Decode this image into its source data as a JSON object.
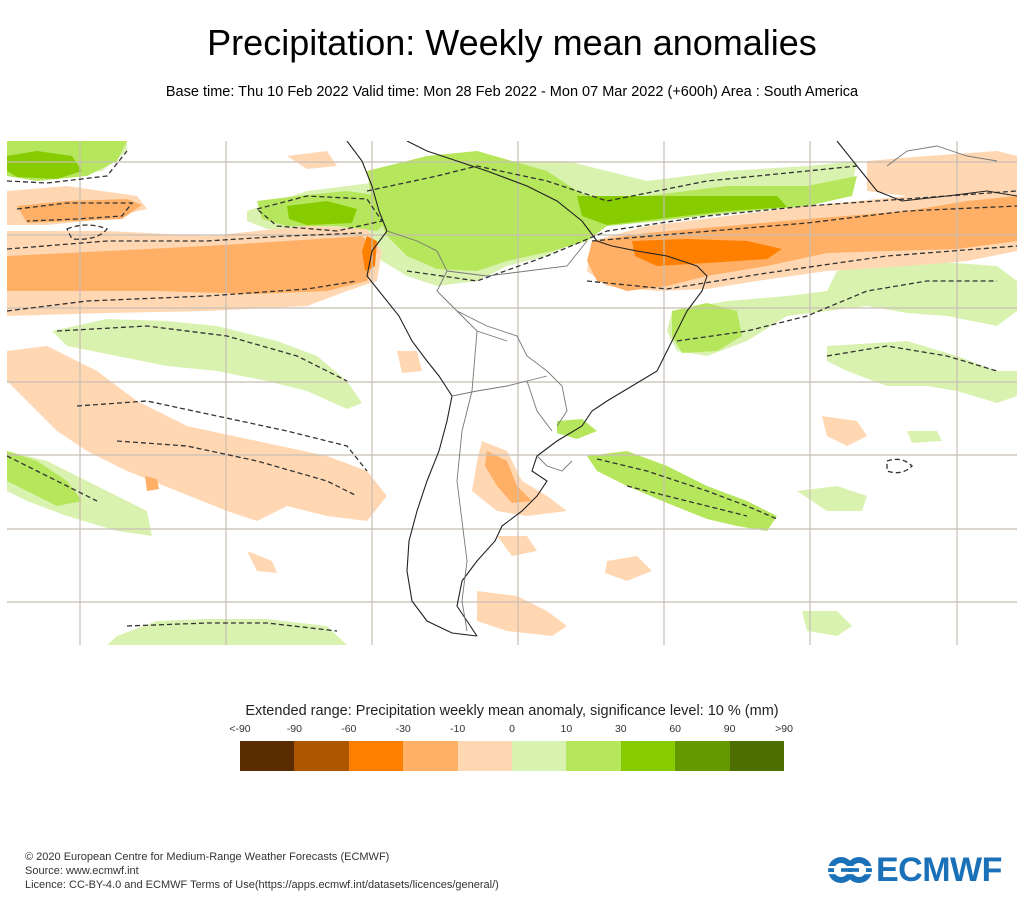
{
  "header": {
    "title": "Precipitation: Weekly mean anomalies",
    "subtitle": "Base time: Thu 10 Feb 2022 Valid time: Mon 28 Feb 2022 - Mon 07 Mar 2022 (+600h) Area : South America"
  },
  "map": {
    "area": "South America",
    "background_color": "#ffffff",
    "grid_color": "#c8beb4",
    "coastline_color": "#222222",
    "border_color": "#666666",
    "significance_contour": "dashed",
    "anomaly_regions": [
      {
        "name": "tropical-north-pacific-wet",
        "category": "10-30"
      },
      {
        "name": "equatorial-pacific-dry-band",
        "category": "-30--10"
      },
      {
        "name": "amazon-wet",
        "category": "10-30"
      },
      {
        "name": "north-brazil-coast-wet",
        "category": "30-60"
      },
      {
        "name": "equatorial-atlantic-dry-band",
        "category": "-60--30"
      },
      {
        "name": "south-atlantic-wet-band",
        "category": "10-30"
      },
      {
        "name": "south-pacific-dry-area",
        "category": "-10-0"
      },
      {
        "name": "south-pacific-wet-band",
        "category": "0-10"
      },
      {
        "name": "argentina-dry-patch",
        "category": "-30--10"
      },
      {
        "name": "southwest-atlantic-wet",
        "category": "10-30"
      },
      {
        "name": "west-africa-gulf-of-guinea-dry",
        "category": "-10-0"
      }
    ]
  },
  "legend": {
    "title": "Extended range: Precipitation weekly mean anomaly, significance level: 10 % (mm)",
    "labels": [
      "<-90",
      "-90",
      "-60",
      "-30",
      "-10",
      "0",
      "10",
      "30",
      "60",
      "90",
      ">90"
    ],
    "colors": [
      "#5a2c00",
      "#ad5500",
      "#ff8000",
      "#ffb066",
      "#ffd8b3",
      "#daf2b0",
      "#b5e65c",
      "#86cc00",
      "#649a00",
      "#4e6e00"
    ]
  },
  "footer": {
    "line1": "© 2020 European Centre for Medium-Range Weather Forecasts (ECMWF)",
    "line2": "Source: www.ecmwf.int",
    "line3": "Licence: CC-BY-4.0 and ECMWF Terms of Use(https://apps.ecmwf.int/datasets/licences/general/)"
  },
  "logo": {
    "text": "ECMWF",
    "color": "#1b71b8"
  }
}
